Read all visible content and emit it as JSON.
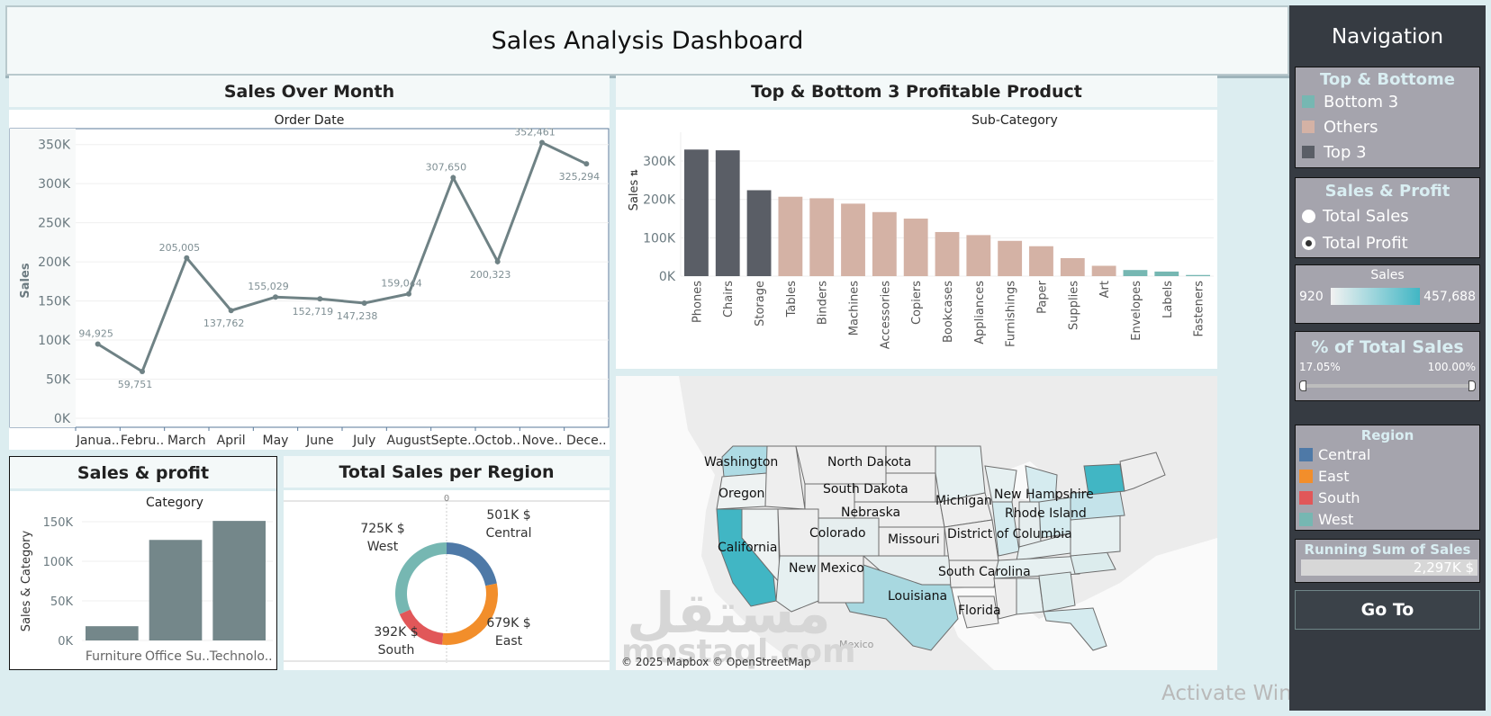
{
  "header": {
    "title": "Sales Analysis Dashboard"
  },
  "sales_over_month": {
    "title": "Sales Over Month",
    "column_header": "Order Date"
  },
  "top_bottom": {
    "title": "Top & Bottom 3 Profitable Product",
    "column_header": "Sub-Category",
    "axis_sort_icon": "sort-descending-icon"
  },
  "sales_profit": {
    "title": "Sales & profit",
    "column_header": "Category"
  },
  "region_donut": {
    "title": "Total Sales per Region",
    "axis_zero": "0"
  },
  "map": {
    "attribution": "© 2025 Mapbox © OpenStreetMap",
    "country_label": "Mexico",
    "watermark_arabic": "مستقل",
    "watermark_latin": "mostaql.com",
    "state_labels": [
      "Washington",
      "Oregon",
      "California",
      "North Dakota",
      "South Dakota",
      "Nebraska",
      "Colorado",
      "New Mexico",
      "Missouri",
      "Michigan",
      "New Hampshire",
      "Rhode Island",
      "District of Columbia",
      "South Carolina",
      "Louisiana",
      "Florida"
    ],
    "highlight_colors": {
      "high": "#41b6c4",
      "mid": "#a8d8e0",
      "low": "#dcedf0",
      "none": "#eeeeee"
    }
  },
  "nav": {
    "title": "Navigation",
    "top_bottom_legend": {
      "title": "Top & Bottome",
      "items": [
        {
          "label": "Bottom 3",
          "color": "#76b7b2"
        },
        {
          "label": "Others",
          "color": "#d4b2a5"
        },
        {
          "label": "Top 3",
          "color": "#5a5e66"
        }
      ]
    },
    "measure_selector": {
      "title": "Sales & Profit",
      "options": [
        {
          "label": "Total Sales",
          "selected": false
        },
        {
          "label": "Total Profit",
          "selected": true
        }
      ]
    },
    "sales_color_legend": {
      "title": "Sales",
      "min": "920",
      "max": "457,688"
    },
    "pct_filter": {
      "title": "% of Total Sales",
      "min": "17.05%",
      "max": "100.00%",
      "low_value": 17.05,
      "high_value": 100.0
    },
    "region_legend": {
      "title": "Region",
      "items": [
        {
          "label": "Central",
          "color": "#4e79a7"
        },
        {
          "label": "East",
          "color": "#f28e2b"
        },
        {
          "label": "South",
          "color": "#e15759"
        },
        {
          "label": "West",
          "color": "#76b7b2"
        }
      ]
    },
    "running_sum": {
      "title": "Running Sum of Sales",
      "value": "2,297K $"
    },
    "goto_label": "Go To"
  },
  "os_watermark": "Activate Windows",
  "chart_data": [
    {
      "type": "line",
      "title": "Sales Over Month",
      "xlabel": "Order Date",
      "ylabel": "Sales",
      "x": [
        "Janua..",
        "Febru..",
        "March",
        "April",
        "May",
        "June",
        "July",
        "August",
        "Septe..",
        "Octob..",
        "Nove..",
        "Dece.."
      ],
      "values": [
        94925,
        59751,
        205005,
        137762,
        155029,
        152719,
        147238,
        159044,
        307650,
        200323,
        352461,
        325294
      ],
      "labels": [
        "94,925",
        "59,751",
        "205,005",
        "137,762",
        "155,029",
        "152,719",
        "147,238",
        "159,044",
        "307,650",
        "200,323",
        "352,461",
        "325,294"
      ],
      "yticks": [
        "0K",
        "50K",
        "100K",
        "150K",
        "200K",
        "250K",
        "300K",
        "350K"
      ],
      "ylim": [
        0,
        360000
      ],
      "grid": true,
      "color": "#6f8285"
    },
    {
      "type": "bar",
      "title": "Top & Bottom 3 Profitable Product",
      "xlabel": "Sub-Category",
      "ylabel": "Sales",
      "categories": [
        "Phones",
        "Chairs",
        "Storage",
        "Tables",
        "Binders",
        "Machines",
        "Accessories",
        "Copiers",
        "Bookcases",
        "Appliances",
        "Furnishings",
        "Paper",
        "Supplies",
        "Art",
        "Envelopes",
        "Labels",
        "Fasteners"
      ],
      "values": [
        330000,
        328000,
        224000,
        207000,
        203000,
        189000,
        167000,
        150000,
        115000,
        107000,
        92000,
        78000,
        47000,
        27000,
        16000,
        12000,
        3000
      ],
      "groups": [
        "Top 3",
        "Top 3",
        "Top 3",
        "Others",
        "Others",
        "Others",
        "Others",
        "Others",
        "Others",
        "Others",
        "Others",
        "Others",
        "Others",
        "Others",
        "Bottom 3",
        "Bottom 3",
        "Bottom 3"
      ],
      "yticks": [
        "0K",
        "100K",
        "200K",
        "300K"
      ],
      "ylim": [
        0,
        340000
      ],
      "grid": true
    },
    {
      "type": "bar",
      "title": "Sales & profit",
      "xlabel": "Category",
      "ylabel": "Sales & Category",
      "categories": [
        "Furniture",
        "Office Su..",
        "Technolo.."
      ],
      "values": [
        18000,
        127000,
        151000
      ],
      "yticks": [
        "0K",
        "50K",
        "100K",
        "150K"
      ],
      "ylim": [
        0,
        160000
      ],
      "grid": true,
      "color": "#74878a"
    },
    {
      "type": "pie",
      "title": "Total Sales per Region",
      "donut": true,
      "slices": [
        {
          "label": "Central",
          "value": 501,
          "display": "501K $",
          "color": "#4e79a7"
        },
        {
          "label": "East",
          "value": 679,
          "display": "679K $",
          "color": "#f28e2b"
        },
        {
          "label": "South",
          "value": 392,
          "display": "392K $",
          "color": "#e15759"
        },
        {
          "label": "West",
          "value": 725,
          "display": "725K $",
          "color": "#76b7b2"
        }
      ],
      "units": "K $"
    }
  ]
}
